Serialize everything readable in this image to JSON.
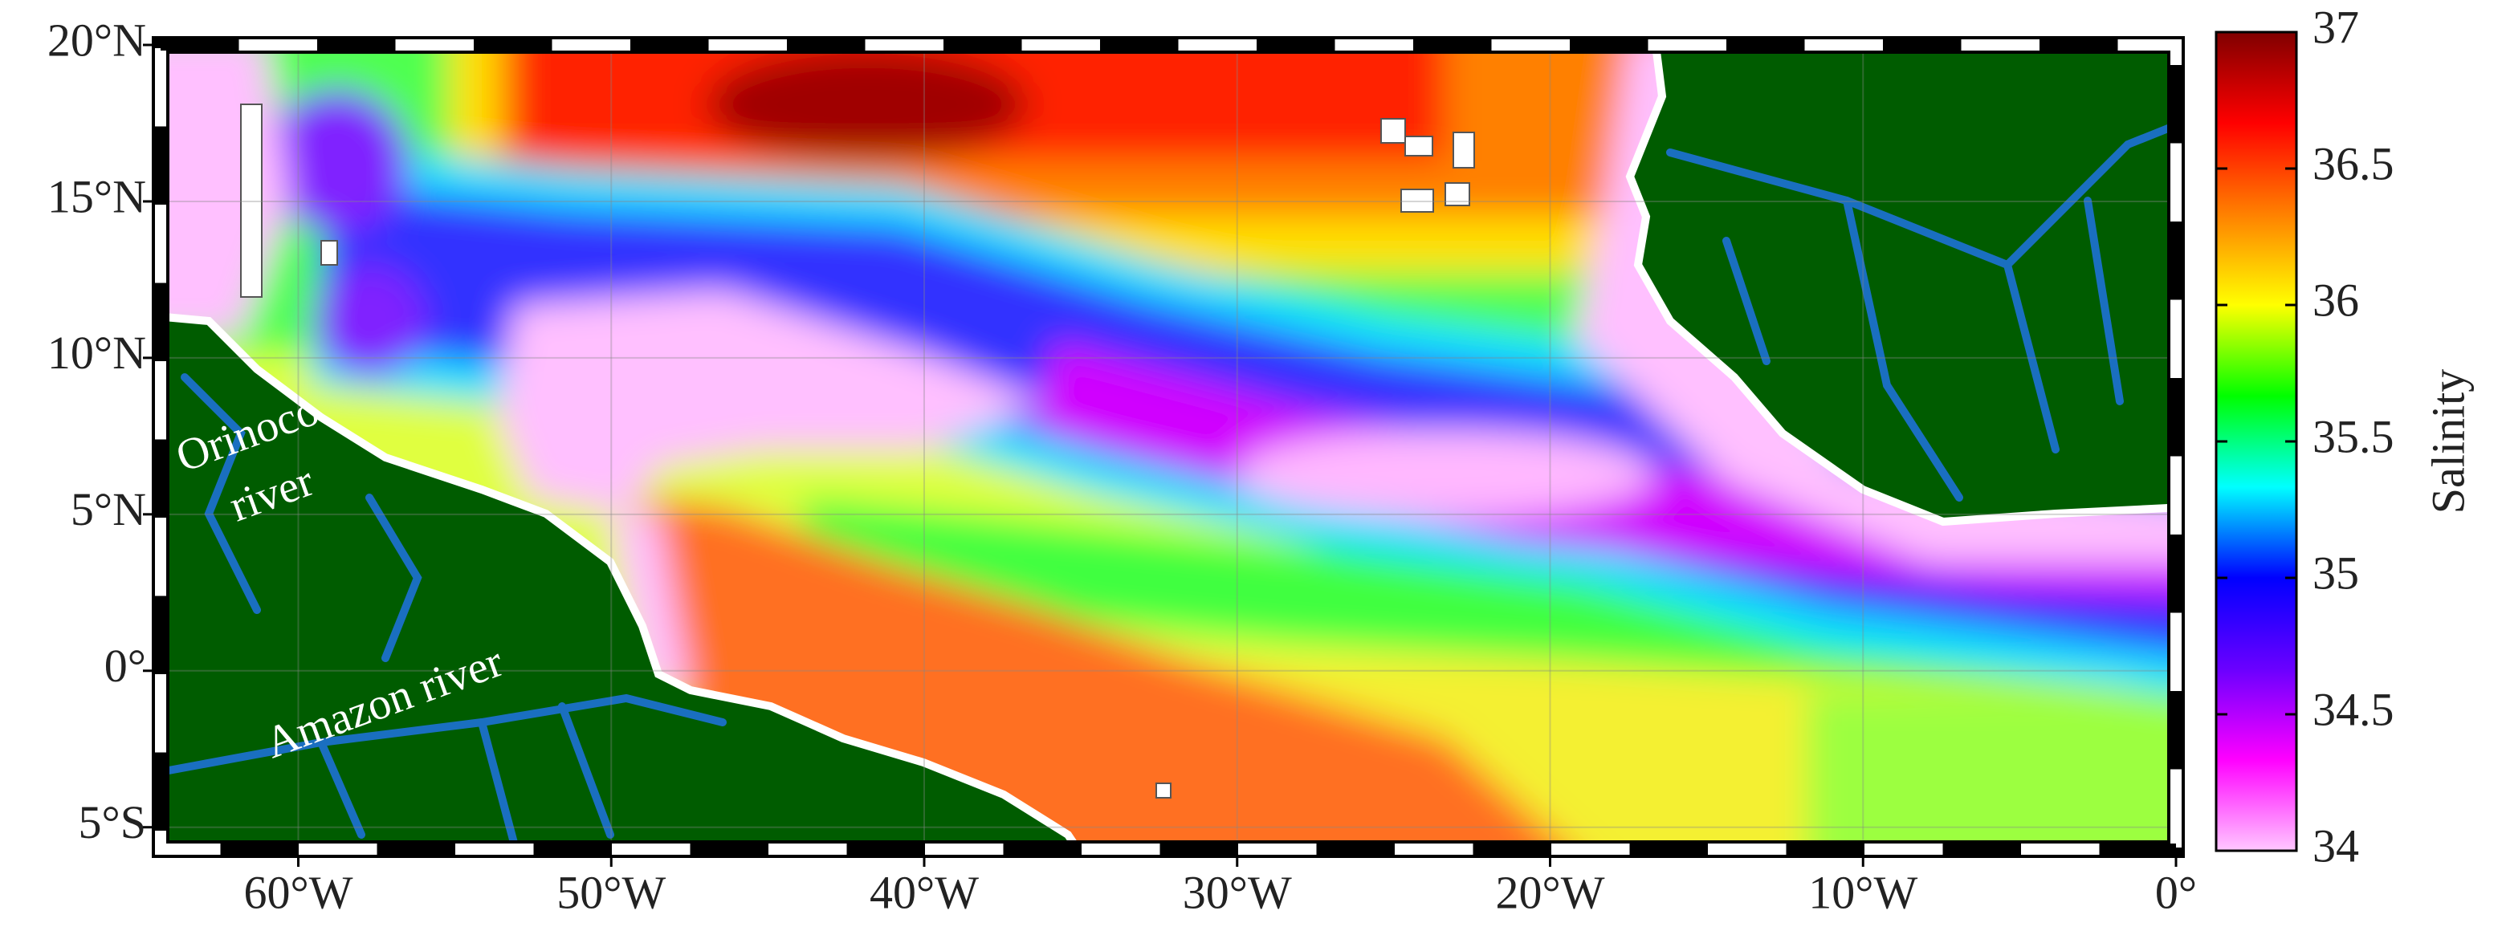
{
  "map": {
    "type": "map",
    "xlim": [
      -64.4,
      0
    ],
    "ylim": [
      -5.7,
      20
    ],
    "xticks": [
      {
        "value": -60,
        "label": "60°W"
      },
      {
        "value": -50,
        "label": "50°W"
      },
      {
        "value": -40,
        "label": "40°W"
      },
      {
        "value": -30,
        "label": "30°W"
      },
      {
        "value": -20,
        "label": "20°W"
      },
      {
        "value": -10,
        "label": "10°W"
      },
      {
        "value": 0,
        "label": "0°"
      }
    ],
    "yticks": [
      {
        "value": 20,
        "label": "20°N"
      },
      {
        "value": 15,
        "label": "15°N"
      },
      {
        "value": 10,
        "label": "10°N"
      },
      {
        "value": 5,
        "label": "5°N"
      },
      {
        "value": 0,
        "label": "0°"
      },
      {
        "value": -5,
        "label": "5°S"
      }
    ],
    "grid": true,
    "annotations": [
      [
        "Orinoco",
        "river"
      ],
      [
        "Amazon river"
      ]
    ]
  },
  "colorbar": {
    "label": "Salinity",
    "clim": [
      34,
      37
    ],
    "ticks": [
      34,
      34.5,
      35,
      35.5,
      36,
      36.5,
      37
    ],
    "colormap": [
      "#ffc8ff",
      "#ff00ff",
      "#6a00ff",
      "#0000ff",
      "#00ffff",
      "#00ff00",
      "#ffff00",
      "#ff8000",
      "#ff0000",
      "#800000"
    ]
  }
}
